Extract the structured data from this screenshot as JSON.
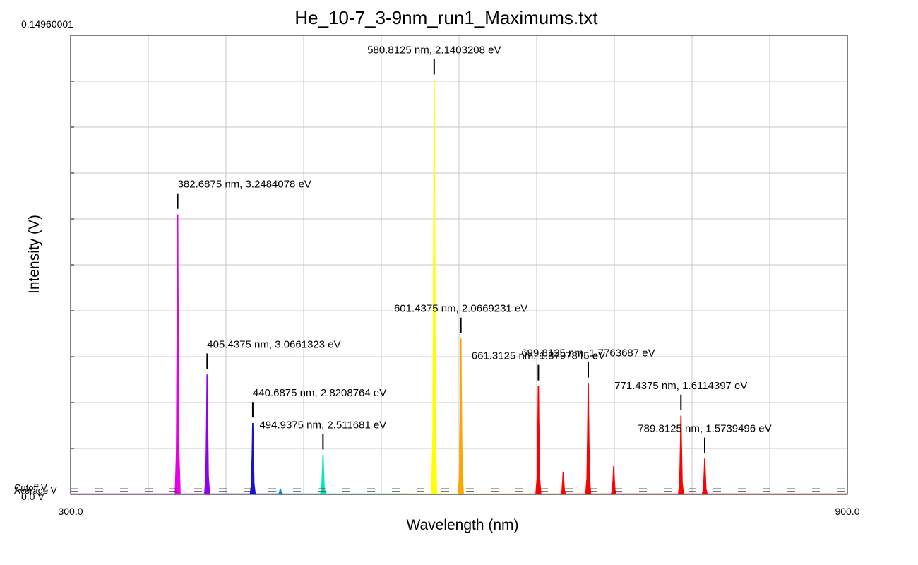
{
  "chart_data": {
    "type": "line",
    "title": "He_10-7_3-9nm_run1_Maximums.txt",
    "xlabel": "Wavelength (nm)",
    "ylabel": "Intensity (V)",
    "xlim": [
      300.0,
      900.0
    ],
    "ylim": [
      0.0,
      0.14960001
    ],
    "x_tick_labels": [
      "300.0",
      "900.0"
    ],
    "y_tick_labels": {
      "top": "0.14960001",
      "bottom": "0.0 V"
    },
    "grid": true,
    "reference_lines": {
      "cutoff": {
        "label": "Cutoff V",
        "value": 0.0018
      },
      "average": {
        "label": "Average V",
        "value": 0.0014
      }
    },
    "peaks": [
      {
        "x": 382.6875,
        "y": 0.0912,
        "color": "#e600e6",
        "label": "382.6875 nm, 3.2484078 eV"
      },
      {
        "x": 405.4375,
        "y": 0.039,
        "color": "#8f00f0",
        "label": "405.4375 nm, 3.0661323 eV"
      },
      {
        "x": 440.6875,
        "y": 0.0232,
        "color": "#1414cc",
        "label": "440.6875 nm, 2.8208764 eV"
      },
      {
        "x": 462.0,
        "y": 0.0018,
        "color": "#0080ff",
        "label": ""
      },
      {
        "x": 494.9375,
        "y": 0.0128,
        "color": "#00e6b8",
        "label": "494.9375 nm, 2.511681 eV"
      },
      {
        "x": 580.8125,
        "y": 0.135,
        "color": "#ffff00",
        "label": "580.8125 nm, 2.1403208 eV"
      },
      {
        "x": 601.4375,
        "y": 0.0507,
        "color": "#ffa500",
        "label": "601.4375 nm, 2.0669231 eV"
      },
      {
        "x": 661.3125,
        "y": 0.0353,
        "color": "#ff0000",
        "label": "661.3125 nm, 1.8797845 eV"
      },
      {
        "x": 680.5,
        "y": 0.0071,
        "color": "#ff0000",
        "label": ""
      },
      {
        "x": 699.8125,
        "y": 0.0362,
        "color": "#ff0000",
        "label": "699.8125 nm, 1.7763687 eV"
      },
      {
        "x": 719.5,
        "y": 0.0091,
        "color": "#ff0000",
        "label": ""
      },
      {
        "x": 771.4375,
        "y": 0.0256,
        "color": "#ff0000",
        "label": "771.4375 nm, 1.6114397 eV"
      },
      {
        "x": 789.8125,
        "y": 0.0116,
        "color": "#ff0000",
        "label": "789.8125 nm, 1.5739496 eV"
      }
    ]
  }
}
